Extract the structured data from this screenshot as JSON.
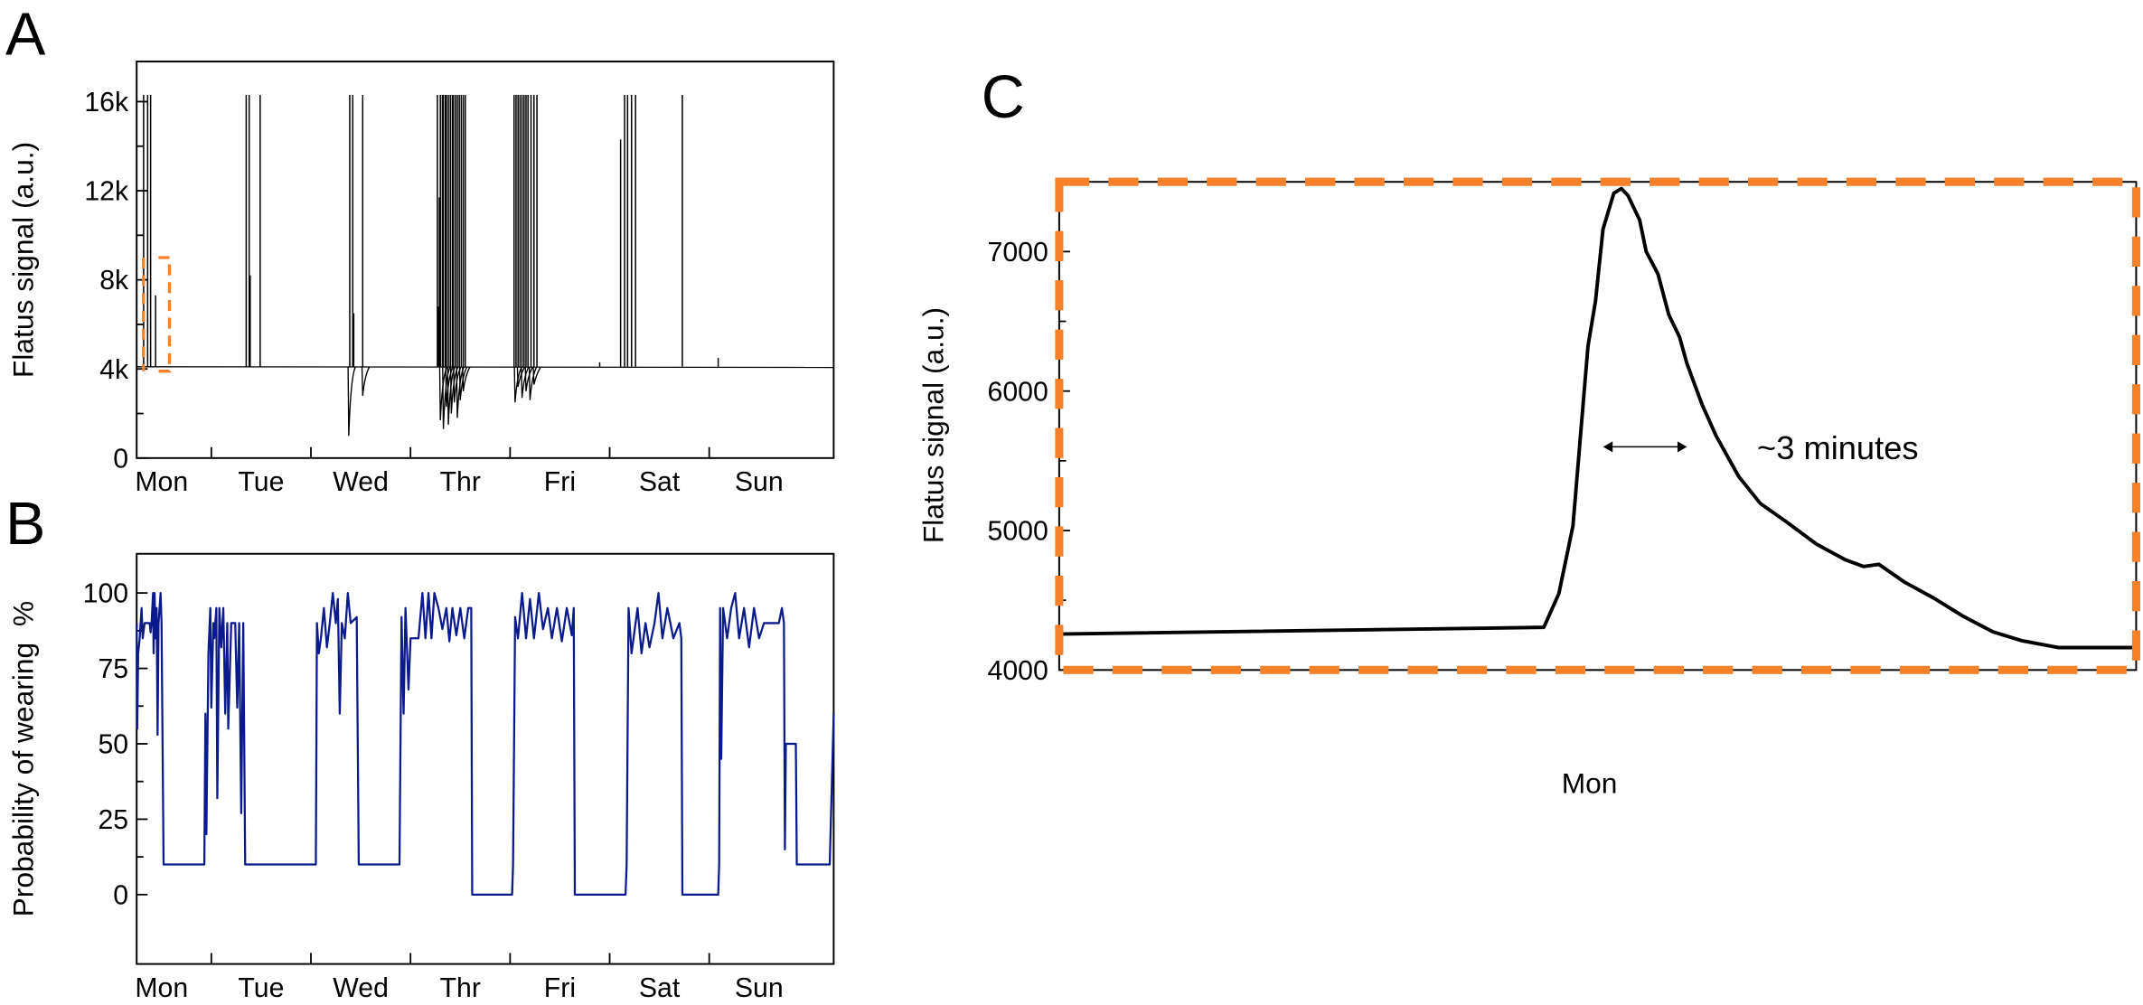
{
  "colors": {
    "highlight": "#f5822a",
    "signal": "#000000",
    "probability": "#0b1a8c"
  },
  "chart_data": [
    {
      "panel": "A",
      "type": "line",
      "ylabel": "Flatus signal (a.u.)",
      "x_tick_labels": [
        "Mon",
        "Tue",
        "Wed",
        "Thr",
        "Fri",
        "Sat",
        "Sun"
      ],
      "xlim_days": [
        -0.25,
        6.75
      ],
      "ylim": [
        0,
        17800
      ],
      "y_ticks": [
        0,
        4000,
        8000,
        12000,
        16000
      ],
      "y_tick_labels": [
        "0",
        "4k",
        "8k",
        "12k",
        "16k"
      ],
      "baseline": 4100,
      "spikes": [
        [
          -0.18,
          16300
        ],
        [
          -0.14,
          16300
        ],
        [
          -0.11,
          16300
        ],
        [
          -0.06,
          7300
        ],
        [
          0.85,
          16300
        ],
        [
          0.88,
          16300
        ],
        [
          0.89,
          8200
        ],
        [
          0.99,
          16300
        ],
        [
          1.89,
          16300
        ],
        [
          1.92,
          16300
        ],
        [
          1.93,
          6500
        ],
        [
          2.02,
          16300
        ],
        [
          2.77,
          16300
        ],
        [
          2.78,
          6800
        ],
        [
          2.79,
          11700
        ],
        [
          2.8,
          16300
        ],
        [
          2.82,
          16300
        ],
        [
          2.83,
          16300
        ],
        [
          2.85,
          16300
        ],
        [
          2.86,
          16300
        ],
        [
          2.88,
          16300
        ],
        [
          2.9,
          16300
        ],
        [
          2.92,
          16300
        ],
        [
          2.93,
          16300
        ],
        [
          2.95,
          16300
        ],
        [
          2.97,
          16300
        ],
        [
          2.99,
          16300
        ],
        [
          3.01,
          16300
        ],
        [
          3.03,
          16300
        ],
        [
          3.05,
          16300
        ],
        [
          3.54,
          16300
        ],
        [
          3.56,
          16300
        ],
        [
          3.58,
          16300
        ],
        [
          3.6,
          16300
        ],
        [
          3.62,
          16300
        ],
        [
          3.64,
          16300
        ],
        [
          3.66,
          16300
        ],
        [
          3.68,
          16300
        ],
        [
          3.71,
          16300
        ],
        [
          3.74,
          16300
        ],
        [
          3.77,
          16300
        ],
        [
          4.4,
          4300
        ],
        [
          4.61,
          14300
        ],
        [
          4.65,
          16300
        ],
        [
          4.68,
          16300
        ],
        [
          4.72,
          16300
        ],
        [
          4.76,
          16300
        ],
        [
          5.23,
          16300
        ],
        [
          5.59,
          4500
        ]
      ],
      "dips": [
        [
          1.88,
          1000
        ],
        [
          2.02,
          2800
        ],
        [
          2.8,
          1700
        ],
        [
          2.83,
          1300
        ],
        [
          2.86,
          2300
        ],
        [
          2.88,
          1500
        ],
        [
          2.91,
          2000
        ],
        [
          2.94,
          2500
        ],
        [
          2.97,
          1800
        ],
        [
          3.0,
          2600
        ],
        [
          3.03,
          3000
        ],
        [
          3.55,
          2500
        ],
        [
          3.58,
          3200
        ],
        [
          3.62,
          2700
        ],
        [
          3.66,
          3000
        ],
        [
          3.7,
          2600
        ],
        [
          3.74,
          3300
        ]
      ],
      "highlight_window_values": [
        3900,
        9000
      ]
    },
    {
      "panel": "B",
      "type": "line",
      "ylabel": "Probability of wearing  %",
      "x_tick_labels": [
        "Mon",
        "Tue",
        "Wed",
        "Thr",
        "Fri",
        "Sat",
        "Sun"
      ],
      "xlim_days": [
        -0.25,
        6.75
      ],
      "ylim": [
        -23,
        113
      ],
      "y_ticks": [
        0,
        25,
        50,
        75,
        100
      ],
      "y_tick_labels": [
        "0",
        "25",
        "50",
        "75",
        "100"
      ],
      "points": [
        [
          -0.25,
          90
        ],
        [
          -0.245,
          55
        ],
        [
          -0.235,
          80
        ],
        [
          -0.22,
          85
        ],
        [
          -0.2,
          95
        ],
        [
          -0.19,
          85
        ],
        [
          -0.17,
          90
        ],
        [
          -0.12,
          90
        ],
        [
          -0.11,
          87
        ],
        [
          -0.1,
          90
        ],
        [
          -0.085,
          100
        ],
        [
          -0.08,
          80
        ],
        [
          -0.07,
          100
        ],
        [
          -0.06,
          85
        ],
        [
          -0.05,
          95
        ],
        [
          -0.04,
          53
        ],
        [
          -0.03,
          90
        ],
        [
          -0.01,
          100
        ],
        [
          0.0,
          90
        ],
        [
          0.02,
          10
        ],
        [
          0.43,
          10
        ],
        [
          0.44,
          60
        ],
        [
          0.45,
          20
        ],
        [
          0.47,
          80
        ],
        [
          0.49,
          95
        ],
        [
          0.5,
          62
        ],
        [
          0.52,
          90
        ],
        [
          0.53,
          85
        ],
        [
          0.55,
          95
        ],
        [
          0.56,
          32
        ],
        [
          0.58,
          95
        ],
        [
          0.6,
          82
        ],
        [
          0.62,
          95
        ],
        [
          0.64,
          60
        ],
        [
          0.66,
          90
        ],
        [
          0.67,
          55
        ],
        [
          0.7,
          90
        ],
        [
          0.74,
          90
        ],
        [
          0.76,
          62
        ],
        [
          0.78,
          90
        ],
        [
          0.8,
          27
        ],
        [
          0.82,
          90
        ],
        [
          0.84,
          10
        ],
        [
          0.86,
          10
        ],
        [
          0.88,
          10
        ],
        [
          1.01,
          10
        ],
        [
          1.55,
          10
        ],
        [
          1.56,
          90
        ],
        [
          1.58,
          80
        ],
        [
          1.6,
          85
        ],
        [
          1.63,
          95
        ],
        [
          1.66,
          82
        ],
        [
          1.69,
          90
        ],
        [
          1.72,
          100
        ],
        [
          1.75,
          90
        ],
        [
          1.77,
          98
        ],
        [
          1.79,
          60
        ],
        [
          1.81,
          90
        ],
        [
          1.84,
          85
        ],
        [
          1.87,
          100
        ],
        [
          1.9,
          90
        ],
        [
          1.96,
          92
        ],
        [
          1.98,
          10
        ],
        [
          2.39,
          10
        ],
        [
          2.41,
          92
        ],
        [
          2.43,
          60
        ],
        [
          2.45,
          95
        ],
        [
          2.48,
          68
        ],
        [
          2.5,
          85
        ],
        [
          2.58,
          85
        ],
        [
          2.62,
          100
        ],
        [
          2.65,
          85
        ],
        [
          2.68,
          100
        ],
        [
          2.71,
          85
        ],
        [
          2.74,
          100
        ],
        [
          2.78,
          95
        ],
        [
          2.82,
          88
        ],
        [
          2.86,
          95
        ],
        [
          2.89,
          84
        ],
        [
          2.92,
          95
        ],
        [
          2.96,
          86
        ],
        [
          3.0,
          95
        ],
        [
          3.04,
          85
        ],
        [
          3.08,
          95
        ],
        [
          3.11,
          95
        ],
        [
          3.12,
          0
        ],
        [
          3.52,
          0
        ],
        [
          3.53,
          10
        ],
        [
          3.55,
          92
        ],
        [
          3.58,
          85
        ],
        [
          3.62,
          100
        ],
        [
          3.66,
          85
        ],
        [
          3.7,
          98
        ],
        [
          3.74,
          85
        ],
        [
          3.79,
          100
        ],
        [
          3.83,
          88
        ],
        [
          3.88,
          95
        ],
        [
          3.92,
          85
        ],
        [
          3.97,
          95
        ],
        [
          4.02,
          84
        ],
        [
          4.07,
          95
        ],
        [
          4.12,
          86
        ],
        [
          4.14,
          95
        ],
        [
          4.15,
          0
        ],
        [
          4.66,
          0
        ],
        [
          4.67,
          10
        ],
        [
          4.69,
          95
        ],
        [
          4.72,
          80
        ],
        [
          4.78,
          95
        ],
        [
          4.82,
          80
        ],
        [
          4.86,
          90
        ],
        [
          4.9,
          82
        ],
        [
          4.95,
          90
        ],
        [
          4.99,
          100
        ],
        [
          5.03,
          85
        ],
        [
          5.08,
          95
        ],
        [
          5.14,
          85
        ],
        [
          5.2,
          90
        ],
        [
          5.22,
          85
        ],
        [
          5.23,
          0
        ],
        [
          5.59,
          0
        ],
        [
          5.6,
          10
        ],
        [
          5.61,
          95
        ],
        [
          5.62,
          45
        ],
        [
          5.64,
          95
        ],
        [
          5.68,
          85
        ],
        [
          5.72,
          95
        ],
        [
          5.76,
          100
        ],
        [
          5.8,
          85
        ],
        [
          5.85,
          95
        ],
        [
          5.9,
          82
        ],
        [
          5.95,
          95
        ],
        [
          6.0,
          85
        ],
        [
          6.05,
          90
        ],
        [
          6.2,
          90
        ],
        [
          6.23,
          95
        ],
        [
          6.25,
          90
        ],
        [
          6.26,
          15
        ],
        [
          6.27,
          50
        ],
        [
          6.37,
          50
        ],
        [
          6.38,
          10
        ],
        [
          6.71,
          10
        ],
        [
          6.75,
          60
        ]
      ]
    },
    {
      "panel": "C",
      "type": "line",
      "ylabel": "Flatus signal (a.u.)",
      "xlabel": "Mon",
      "xlim_percent_of_window": [
        0,
        100
      ],
      "ylim": [
        4000,
        7500
      ],
      "y_ticks": [
        4000,
        5000,
        6000,
        7000
      ],
      "y_tick_labels": [
        "4000",
        "5000",
        "6000",
        "7000"
      ],
      "points": [
        [
          0,
          4258
        ],
        [
          45,
          4306
        ],
        [
          46.4,
          4548
        ],
        [
          47.7,
          5032
        ],
        [
          48.4,
          5677
        ],
        [
          49.1,
          6323
        ],
        [
          49.8,
          6645
        ],
        [
          50.5,
          7161
        ],
        [
          51.5,
          7419
        ],
        [
          52.2,
          7452
        ],
        [
          52.8,
          7403
        ],
        [
          53.9,
          7226
        ],
        [
          54.5,
          7000
        ],
        [
          55.6,
          6839
        ],
        [
          56.6,
          6548
        ],
        [
          57.6,
          6387
        ],
        [
          58.3,
          6194
        ],
        [
          59.7,
          5903
        ],
        [
          61,
          5677
        ],
        [
          63.1,
          5387
        ],
        [
          65.1,
          5194
        ],
        [
          67.5,
          5064
        ],
        [
          70.3,
          4903
        ],
        [
          73,
          4790
        ],
        [
          74.7,
          4742
        ],
        [
          76.1,
          4758
        ],
        [
          78.5,
          4629
        ],
        [
          81.2,
          4516
        ],
        [
          83.9,
          4387
        ],
        [
          86.7,
          4274
        ],
        [
          89.4,
          4210
        ],
        [
          92.8,
          4161
        ],
        [
          100,
          4161
        ]
      ],
      "annotation": {
        "text": "~3 minutes",
        "arrow_x": [
          50.5,
          58.3
        ],
        "y": 5600
      }
    }
  ],
  "panels": {
    "a": "A",
    "b": "B",
    "c": "C"
  }
}
